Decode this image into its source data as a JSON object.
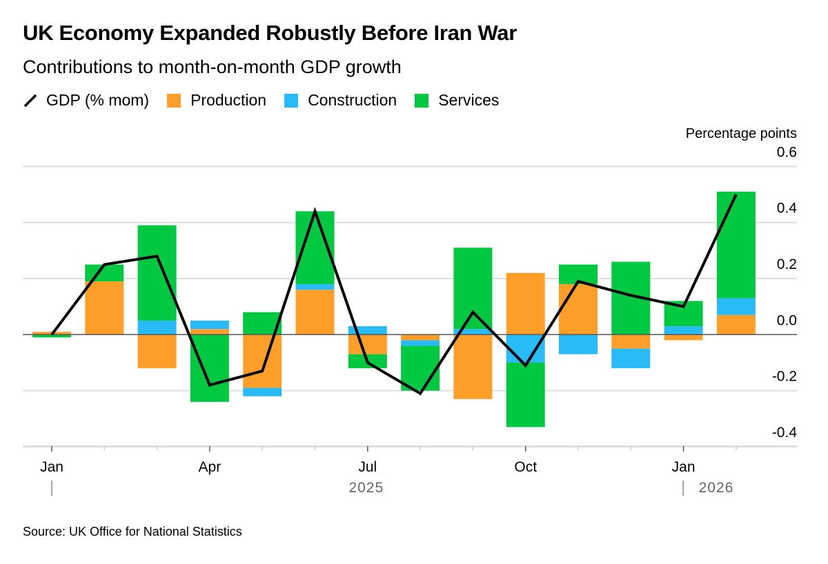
{
  "title": "UK Economy Expanded Robustly Before Iran War",
  "subtitle": "Contributions to month-on-month GDP growth",
  "source": "Source: UK Office for National Statistics",
  "colors": {
    "gdp": "#000000",
    "production": "#ff9f29",
    "construction": "#29bbf8",
    "services": "#00c941",
    "grid": "#dddddd"
  },
  "chart_data": {
    "type": "bar",
    "stacked": true,
    "ylabel": "Percentage points",
    "ylim": [
      -0.4,
      0.6
    ],
    "yticks": [
      "0.6",
      "0.4",
      "0.2",
      "0.0",
      "-0.2",
      "-0.4"
    ],
    "ytick_values": [
      0.6,
      0.4,
      0.2,
      0.0,
      -0.2,
      -0.4
    ],
    "grid": true,
    "legend_position": "top-left",
    "categories": [
      "Jan 2025",
      "Feb 2025",
      "Mar 2025",
      "Apr 2025",
      "May 2025",
      "Jun 2025",
      "Jul 2025",
      "Aug 2025",
      "Sep 2025",
      "Oct 2025",
      "Nov 2025",
      "Dec 2025",
      "Jan 2026",
      "Feb 2026"
    ],
    "xtick_labels": [
      "Jan",
      "",
      "",
      "Apr",
      "",
      "",
      "Jul",
      "",
      "",
      "Oct",
      "",
      "",
      "Jan",
      ""
    ],
    "year_labels": [
      {
        "label": "2025",
        "month_index": 6
      },
      {
        "label": "2026",
        "month_index": 13
      }
    ],
    "series": [
      {
        "name": "Production",
        "kind": "bar",
        "values": [
          0.01,
          0.19,
          -0.12,
          0.02,
          -0.19,
          0.16,
          -0.07,
          -0.02,
          -0.23,
          0.22,
          0.18,
          -0.05,
          -0.02,
          0.07
        ]
      },
      {
        "name": "Construction",
        "kind": "bar",
        "values": [
          0.0,
          0.0,
          0.05,
          0.03,
          -0.03,
          0.02,
          0.03,
          -0.02,
          0.02,
          -0.1,
          -0.07,
          -0.07,
          0.03,
          0.06
        ]
      },
      {
        "name": "Services",
        "kind": "bar",
        "values": [
          -0.01,
          0.06,
          0.34,
          -0.24,
          0.08,
          0.26,
          -0.05,
          -0.16,
          0.29,
          -0.23,
          0.07,
          0.26,
          0.09,
          0.38
        ]
      },
      {
        "name": "GDP (% mom)",
        "kind": "line",
        "values": [
          0.0,
          0.25,
          0.28,
          -0.18,
          -0.13,
          0.44,
          -0.1,
          -0.21,
          0.08,
          -0.11,
          0.19,
          0.14,
          0.1,
          0.5
        ]
      }
    ]
  }
}
